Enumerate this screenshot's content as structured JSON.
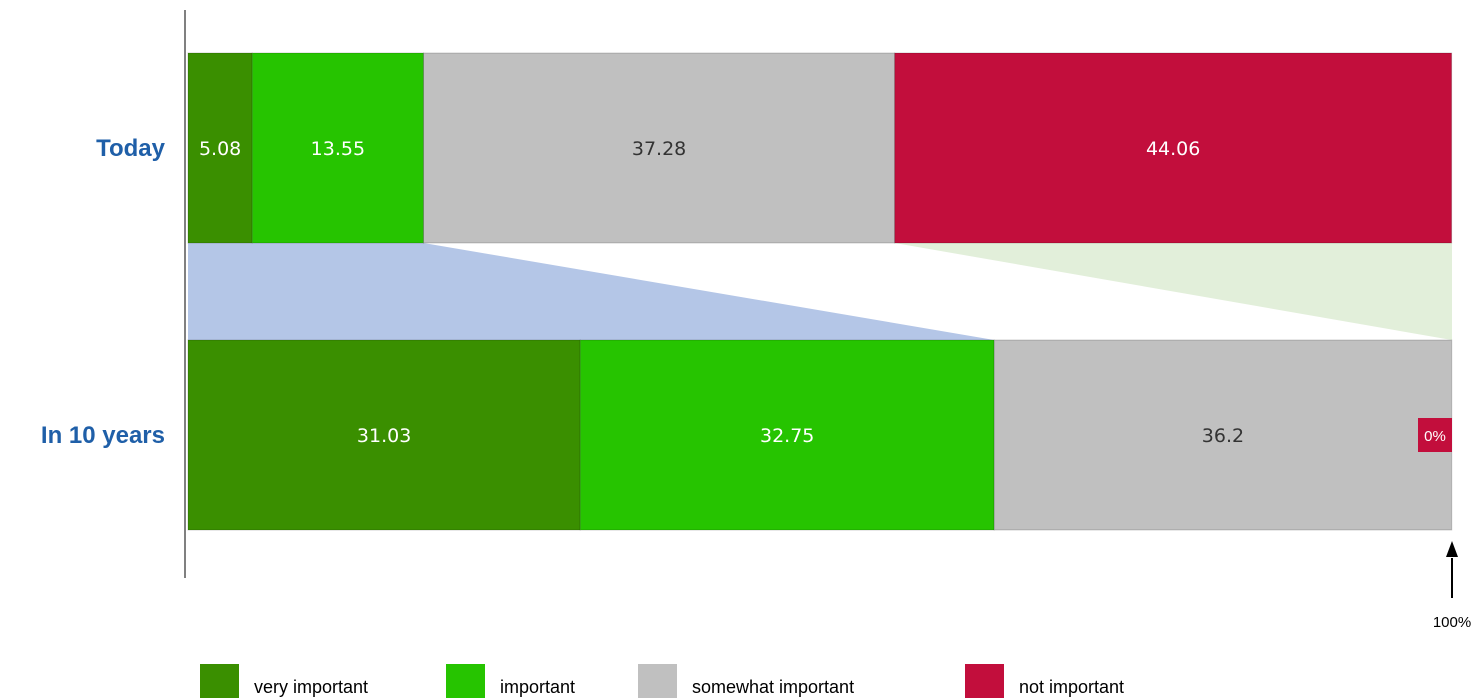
{
  "chart_data": {
    "type": "bar",
    "orientation": "horizontal",
    "stacked": true,
    "categories": [
      "Today",
      "In 10 years"
    ],
    "series": [
      {
        "name": "very important",
        "color": "#3a8f00",
        "values": [
          5.08,
          31.03
        ],
        "label_color": "#ffffff"
      },
      {
        "name": "important",
        "color": "#26c400",
        "values": [
          13.55,
          32.75
        ],
        "label_color": "#ffffff"
      },
      {
        "name": "somewhat important",
        "color": "#c0c0c0",
        "values": [
          37.28,
          36.2
        ],
        "label_color": "#333333"
      },
      {
        "name": "not important",
        "color": "#c20e3c",
        "values": [
          44.06,
          0
        ],
        "label_color": "#ffffff"
      }
    ],
    "zero_badge_label": "0%",
    "xlim": [
      0,
      100
    ],
    "end_annotation": "100%",
    "connectors": [
      {
        "from_series_end": 1,
        "to_series_end": 1,
        "color": "#b4c6e7"
      },
      {
        "from_series_end": 2,
        "to_series_end": 2,
        "color": "#e2efda"
      }
    ],
    "legend_position": "bottom",
    "grid": false
  }
}
